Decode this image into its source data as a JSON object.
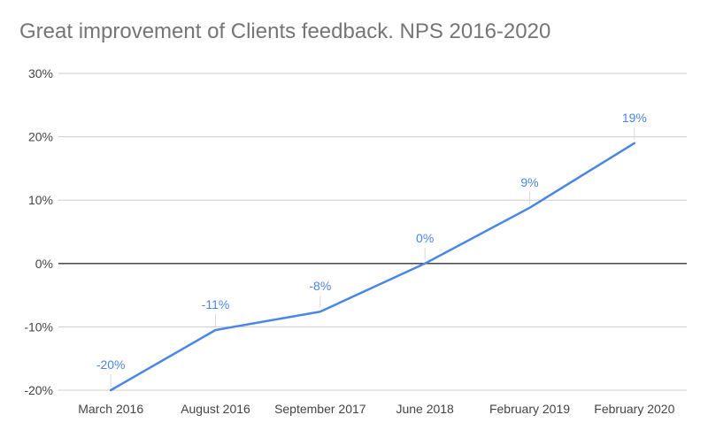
{
  "chart_data": {
    "type": "line",
    "title": "Great improvement of Clients feedback. NPS 2016-2020",
    "categories": [
      "March 2016",
      "August 2016",
      "September 2017",
      "June 2018",
      "February 2019",
      "February 2020"
    ],
    "series": [
      {
        "values": [
          -20,
          -10.5,
          -7.6,
          0,
          8.8,
          19
        ],
        "data_labels": [
          "-20%",
          "-11%",
          "-8%",
          "0%",
          "9%",
          "19%"
        ],
        "color": "#4a86e8"
      }
    ],
    "y_ticks": [
      30,
      20,
      10,
      0,
      -10,
      -20
    ],
    "y_tick_labels": [
      "30%",
      "20%",
      "10%",
      "0%",
      "-10%",
      "-20%"
    ],
    "ylim": [
      -20,
      30
    ],
    "xlabel": "",
    "ylabel": "",
    "grid": true,
    "legend": "none",
    "colors": {
      "gridline": "#cccccc",
      "zero_line": "#333333",
      "label_tick": "#d9d9d9",
      "title": "#757575",
      "axis_text": "#444444"
    }
  }
}
